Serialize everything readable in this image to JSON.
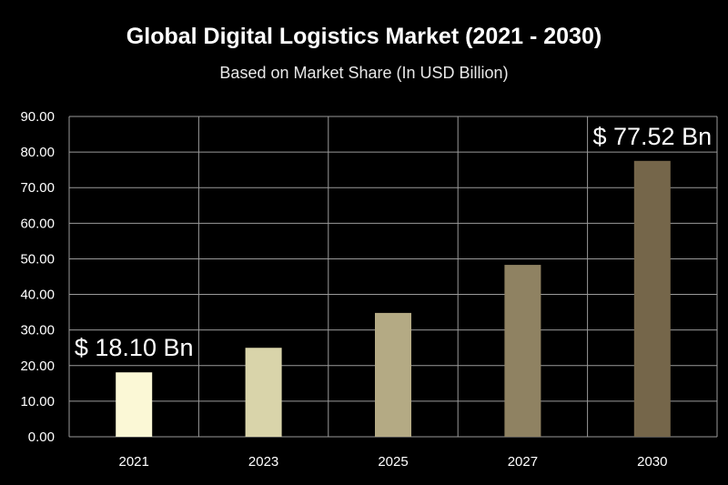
{
  "chart_data": {
    "type": "bar",
    "title": "Global Digital Logistics Market  (2021 - 2030)",
    "subtitle": "Based on Market Share (In USD Billion)",
    "xlabel": "",
    "ylabel": "",
    "categories": [
      "2021",
      "2023",
      "2025",
      "2027",
      "2030"
    ],
    "values": [
      18.1,
      25.0,
      34.8,
      48.3,
      77.52
    ],
    "ylim": [
      0,
      90
    ],
    "yticks": [
      "0.00",
      "10.00",
      "20.00",
      "30.00",
      "40.00",
      "50.00",
      "60.00",
      "70.00",
      "80.00",
      "90.00"
    ],
    "grid": true,
    "bar_colors": [
      "#fbf8d6",
      "#d9d4aa",
      "#b4aa84",
      "#8f8262",
      "#75664a"
    ],
    "annotations": [
      {
        "category": "2021",
        "text": "$ 18.10 Bn"
      },
      {
        "category": "2030",
        "text": "$ 77.52 Bn"
      }
    ]
  }
}
